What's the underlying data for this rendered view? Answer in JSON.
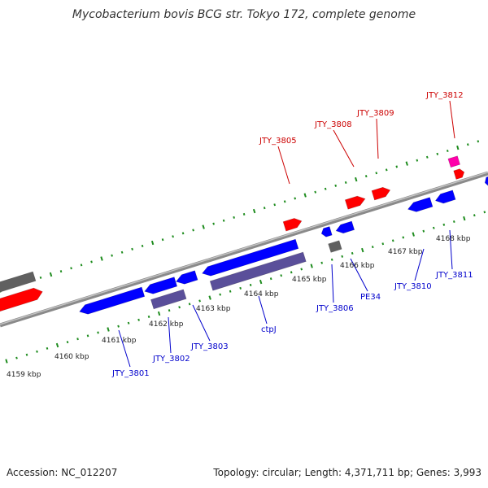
{
  "title": "Mycobacterium bovis BCG str. Tokyo 172, complete genome",
  "footer": {
    "accession": "Accession: NC_012207",
    "topology": "Topology: circular; Length: 4,371,711 bp; Genes: 3,993"
  },
  "colors": {
    "backbone": "#808080",
    "tick": "#1e8c1e",
    "forward_gene": "#ff0000",
    "reverse_gene": "#0000ff",
    "cds_reverse": "#5a4f9a",
    "pseudo_gene": "#606060",
    "rna_gene": "#ff00aa",
    "label_forward": "#cc0000",
    "label_reverse": "#0000cc",
    "kbp_label": "#222222"
  },
  "kbp_ticks": [
    "4159 kbp",
    "4160 kbp",
    "4161 kbp",
    "4162 kbp",
    "4163 kbp",
    "4164 kbp",
    "4165 kbp",
    "4166 kbp",
    "4167 kbp",
    "4168 kbp"
  ],
  "gene_labels_top": [
    "JTY_3805",
    "JTY_3808",
    "JTY_3809",
    "JTY_3812"
  ],
  "gene_labels_bottom": [
    "JTY_3801",
    "JTY_3802",
    "JTY_3803",
    "ctpJ",
    "JTY_3806",
    "PE34",
    "JTY_3810",
    "JTY_3811"
  ]
}
